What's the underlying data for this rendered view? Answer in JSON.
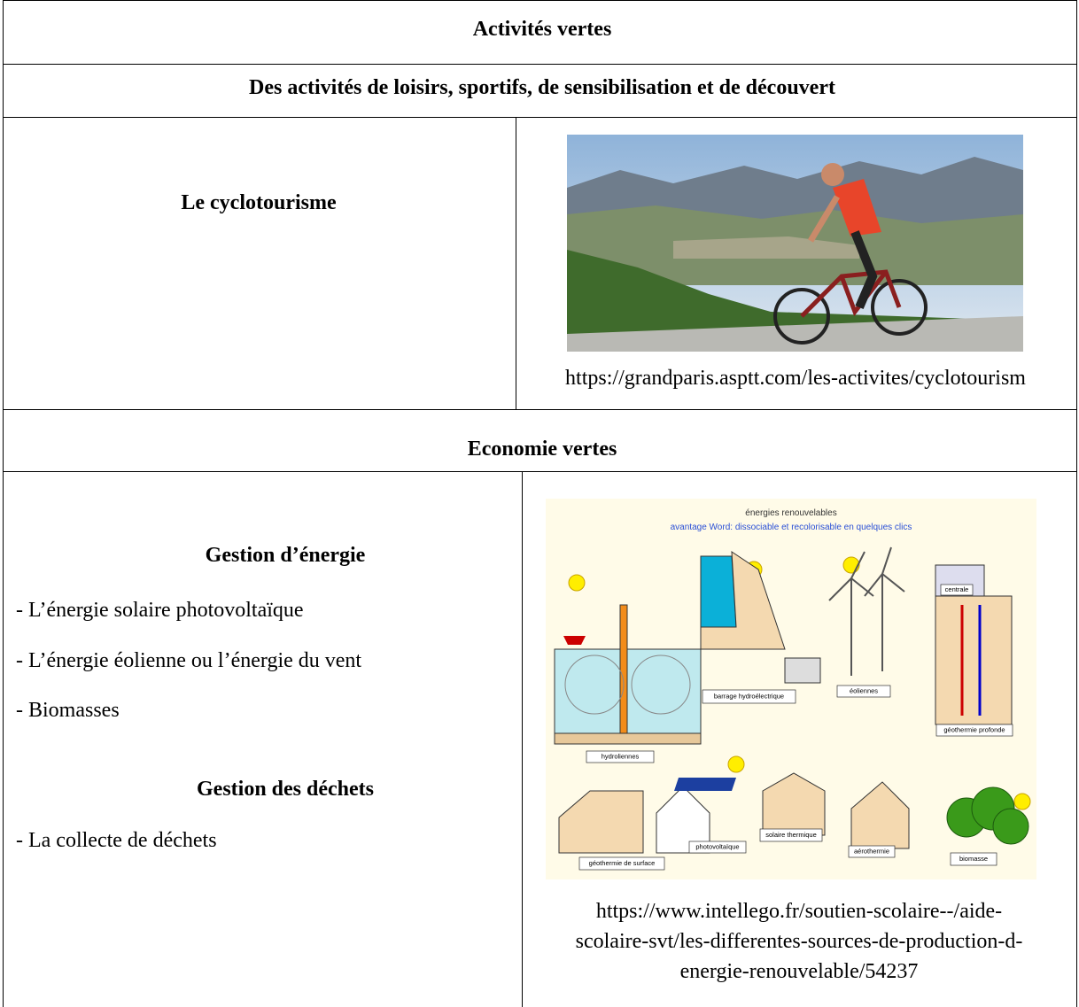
{
  "header": {
    "title": "Activités vertes",
    "subtitle": "Des activités de loisirs, sportifs, de sensibilisation et de découvert"
  },
  "cyclotourisme": {
    "title": "Le cyclotourisme",
    "caption": "https://grandparis.asptt.com/les-activites/cyclotourism"
  },
  "economie": {
    "title": "Economie vertes",
    "energie": {
      "title": "Gestion d’énergie",
      "items": [
        "- L’énergie solaire photovoltaïque",
        "- L’énergie éolienne ou l’énergie du vent",
        "- Biomasses"
      ]
    },
    "dechets": {
      "title": "Gestion des déchets",
      "items": [
        "- La collecte de déchets"
      ]
    },
    "caption_lines": [
      "https://www.intellego.fr/soutien-scolaire--/aide-",
      "scolaire-svt/les-differentes-sources-de-production-d-",
      "energie-renouvelable/54237"
    ]
  },
  "energy_diagram": {
    "title": "énergies renouvelables",
    "subtitle": "avantage Word: dissociable et recolorisable en quelques clics",
    "labels": [
      "centrale",
      "barrage hydroélectrique",
      "éoliennes",
      "géothermie profonde",
      "hydroliennes",
      "géothermie de surface",
      "photovoltaïque",
      "solaire thermique",
      "aérothermie",
      "biomasse"
    ]
  }
}
